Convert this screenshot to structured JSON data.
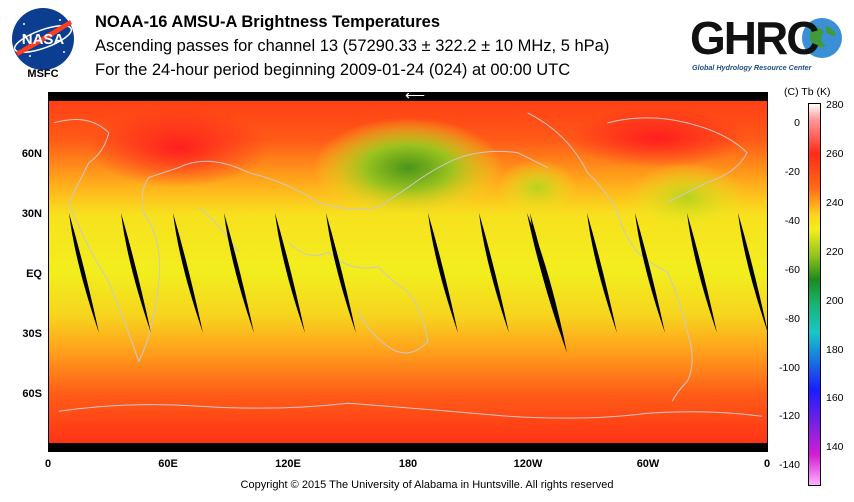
{
  "header": {
    "title": "NOAA-16 AMSU-A Brightness Temperatures",
    "subtitle": "Ascending passes for channel 13 (57290.33 ± 322.2 ± 10 MHz, 5 hPa)",
    "period": "For the 24-hour period beginning 2009-01-24 (024) at 00:00 UTC"
  },
  "logos": {
    "nasa_text": "NASA",
    "msfc_label": "MSFC",
    "ghrc_text": "GHRC",
    "ghrc_subtitle": "Global Hydrology Resource Center"
  },
  "map": {
    "lat_labels": [
      "60N",
      "30N",
      "EQ",
      "30S",
      "60S"
    ],
    "lon_labels": [
      "0",
      "60E",
      "120E",
      "180",
      "120W",
      "60W",
      "0"
    ],
    "direction_arrow": "⟵"
  },
  "colorbar": {
    "header": "(C)  Tb  (K)",
    "celsius_ticks": [
      "0",
      "-20",
      "-40",
      "-60",
      "-80",
      "-100",
      "-120",
      "-140"
    ],
    "kelvin_ticks": [
      "280",
      "260",
      "240",
      "220",
      "200",
      "180",
      "160",
      "140"
    ]
  },
  "footer": {
    "copyright": "Copyright © 2015 The University of Alabama in Huntsville.  All rights reserved"
  },
  "colors": {
    "band_low_lat": "#f2ee1e",
    "band_mid_lat": "#ff9c1a",
    "band_high_lat": "#ff1f1f",
    "cold_spot": "#5a9e1c",
    "gap": "#000000",
    "coastline": "#c8c8c8"
  }
}
